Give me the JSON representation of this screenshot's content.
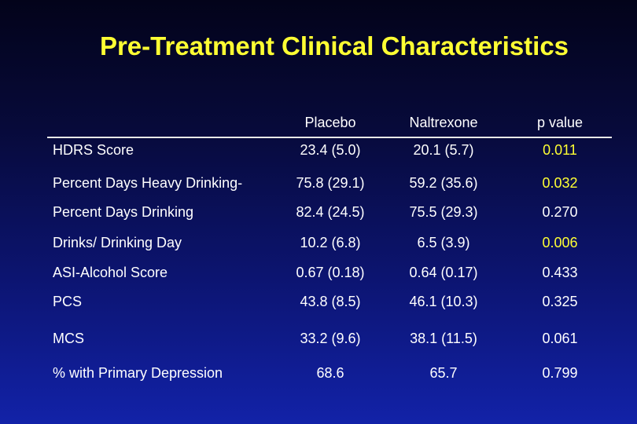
{
  "slide": {
    "title": "Pre-Treatment Clinical Characteristics"
  },
  "table": {
    "columns": [
      "Placebo",
      "Naltrexone",
      "p value"
    ],
    "colors": {
      "significant": "#ffff33",
      "normal": "#ffffff"
    },
    "rows": [
      {
        "label": "HDRS Score",
        "placebo": "23.4 (5.0)",
        "naltrexone": "20.1 (5.7)",
        "p": "0.011"
      },
      {
        "label": "Percent Days Heavy Drinking-",
        "placebo": "75.8 (29.1)",
        "naltrexone": "59.2 (35.6)",
        "p": "0.032"
      },
      {
        "label": "Percent Days Drinking",
        "placebo": "82.4 (24.5)",
        "naltrexone": "75.5 (29.3)",
        "p": "0.270"
      },
      {
        "label": "Drinks/ Drinking Day",
        "placebo": "10.2 (6.8)",
        "naltrexone": "6.5 (3.9)",
        "p": "0.006"
      },
      {
        "label": "ASI-Alcohol Score",
        "placebo": "0.67 (0.18)",
        "naltrexone": "0.64 (0.17)",
        "p": "0.433"
      },
      {
        "label": "PCS",
        "placebo": "43.8 (8.5)",
        "naltrexone": "46.1 (10.3)",
        "p": "0.325"
      },
      {
        "label": "MCS",
        "placebo": "33.2 (9.6)",
        "naltrexone": "38.1 (11.5)",
        "p": "0.061"
      },
      {
        "label": "% with Primary Depression",
        "placebo": "68.6",
        "naltrexone": "65.7",
        "p": "0.799"
      }
    ]
  }
}
